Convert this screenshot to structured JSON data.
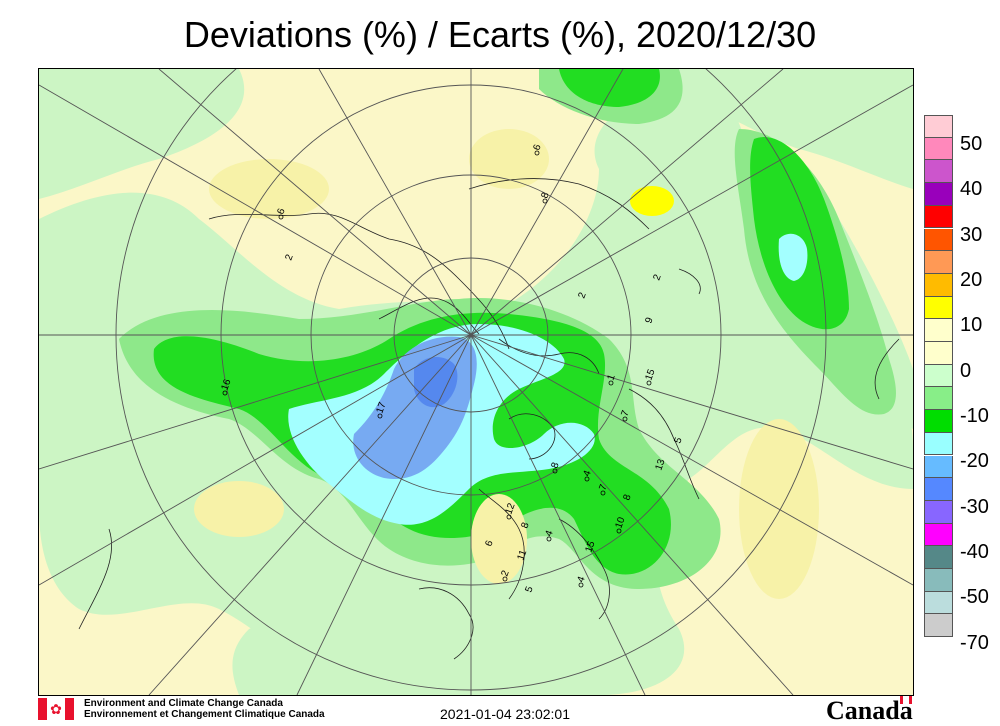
{
  "title": "Deviations (%) / Ecarts (%), 2020/12/30",
  "legend": {
    "swatches": [
      "#ffccd5",
      "#ff88bb",
      "#cc55cc",
      "#9900bb",
      "#ff0000",
      "#ff5500",
      "#ff9955",
      "#ffbb00",
      "#ffff00",
      "#ffffcc",
      "#ccffcc",
      "#88ee88",
      "#00dd00",
      "#99ffff",
      "#66bbff",
      "#5588ff",
      "#8866ff",
      "#ff00ff",
      "#558888",
      "#88bbbb",
      "#bbdddd",
      "#cccccc"
    ],
    "labels": [
      "50",
      "40",
      "30",
      "20",
      "10",
      "0",
      "-10",
      "-20",
      "-30",
      "-40",
      "-50",
      "-70"
    ]
  },
  "footer": {
    "org_en": "Environment and Climate Change Canada",
    "org_fr": "Environnement et Changement Climatique Canada",
    "timestamp": "2021-01-04 23:02:01",
    "wordmark": "Canada"
  },
  "station_labels": [
    "6",
    "8",
    "6",
    "2",
    "2",
    "16",
    "17",
    "9",
    "1",
    "15",
    "7",
    "5",
    "13",
    "8",
    "4",
    "7",
    "8",
    "10",
    "15",
    "4",
    "12",
    "8",
    "6",
    "4",
    "11",
    "2",
    "5",
    "2"
  ]
}
